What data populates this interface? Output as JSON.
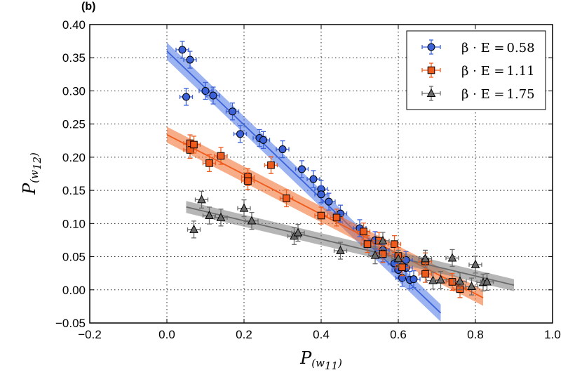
{
  "chart_data": {
    "type": "scatter",
    "panel_label": "(b)",
    "xlabel": {
      "main": "P",
      "sub": "(w",
      "sub_index": "11",
      "close": ")"
    },
    "ylabel": {
      "main": "P",
      "sub": "(w",
      "sub_index": "12",
      "close": ")"
    },
    "xlim": [
      -0.2,
      1.0
    ],
    "ylim": [
      -0.05,
      0.4
    ],
    "xticks": [
      "−0.2",
      "0.0",
      "0.2",
      "0.4",
      "0.6",
      "0.8",
      "1.0"
    ],
    "xtick_values": [
      -0.2,
      0.0,
      0.2,
      0.4,
      0.6,
      0.8,
      1.0
    ],
    "yticks": [
      "−0.05",
      "0.00",
      "0.05",
      "0.10",
      "0.15",
      "0.20",
      "0.25",
      "0.30",
      "0.35",
      "0.40"
    ],
    "ytick_values": [
      -0.05,
      0.0,
      0.05,
      0.1,
      0.15,
      0.2,
      0.25,
      0.3,
      0.35,
      0.4
    ],
    "grid": true,
    "legend_position": "top-right",
    "series": [
      {
        "name": "β · E = 0.58",
        "legend_prefix": "β · E =",
        "legend_value": "0.58",
        "marker": "circle",
        "color": "#3b62d9",
        "band_color": "#4a74e6",
        "fit": {
          "x_start": 0.0,
          "x_end": 0.71,
          "y_start": 0.36,
          "y_end": -0.035,
          "band_halfwidth": 0.013
        },
        "points": [
          [
            0.04,
            0.362
          ],
          [
            0.06,
            0.347
          ],
          [
            0.05,
            0.291
          ],
          [
            0.1,
            0.3
          ],
          [
            0.12,
            0.293
          ],
          [
            0.17,
            0.269
          ],
          [
            0.19,
            0.235
          ],
          [
            0.24,
            0.229
          ],
          [
            0.25,
            0.226
          ],
          [
            0.3,
            0.212
          ],
          [
            0.35,
            0.182
          ],
          [
            0.38,
            0.167
          ],
          [
            0.4,
            0.152
          ],
          [
            0.4,
            0.144
          ],
          [
            0.42,
            0.133
          ],
          [
            0.45,
            0.115
          ],
          [
            0.5,
            0.093
          ],
          [
            0.54,
            0.075
          ],
          [
            0.56,
            0.06
          ],
          [
            0.56,
            0.055
          ],
          [
            0.59,
            0.04
          ],
          [
            0.6,
            0.03
          ],
          [
            0.61,
            0.018
          ],
          [
            0.62,
            0.045
          ],
          [
            0.62,
            0.033
          ],
          [
            0.63,
            0.015
          ],
          [
            0.64,
            0.016
          ]
        ]
      },
      {
        "name": "β · E = 1.11",
        "legend_prefix": "β · E =",
        "legend_value": "1.11",
        "marker": "square",
        "color": "#f05a1a",
        "band_color": "#f36a28",
        "fit": {
          "x_start": 0.0,
          "x_end": 0.82,
          "y_start": 0.234,
          "y_end": -0.012,
          "band_halfwidth": 0.012
        },
        "points": [
          [
            0.06,
            0.221
          ],
          [
            0.06,
            0.211
          ],
          [
            0.07,
            0.219
          ],
          [
            0.11,
            0.191
          ],
          [
            0.14,
            0.202
          ],
          [
            0.21,
            0.17
          ],
          [
            0.21,
            0.164
          ],
          [
            0.27,
            0.188
          ],
          [
            0.31,
            0.138
          ],
          [
            0.4,
            0.112
          ],
          [
            0.44,
            0.109
          ],
          [
            0.51,
            0.088
          ],
          [
            0.52,
            0.069
          ],
          [
            0.55,
            0.074
          ],
          [
            0.56,
            0.054
          ],
          [
            0.59,
            0.069
          ],
          [
            0.6,
            0.051
          ],
          [
            0.61,
            0.034
          ],
          [
            0.67,
            0.043
          ],
          [
            0.67,
            0.024
          ],
          [
            0.74,
            0.012
          ],
          [
            0.76,
            0.001
          ]
        ]
      },
      {
        "name": "β · E = 1.75",
        "legend_prefix": "β · E =",
        "legend_value": "1.75",
        "marker": "triangle",
        "color": "#6b6b6b",
        "band_color": "#7a7a7a",
        "fit": {
          "x_start": 0.05,
          "x_end": 0.9,
          "y_start": 0.125,
          "y_end": 0.007,
          "band_halfwidth": 0.009
        },
        "points": [
          [
            0.07,
            0.091
          ],
          [
            0.09,
            0.136
          ],
          [
            0.11,
            0.112
          ],
          [
            0.14,
            0.109
          ],
          [
            0.2,
            0.123
          ],
          [
            0.22,
            0.104
          ],
          [
            0.33,
            0.081
          ],
          [
            0.34,
            0.086
          ],
          [
            0.45,
            0.059
          ],
          [
            0.54,
            0.052
          ],
          [
            0.56,
            0.074
          ],
          [
            0.6,
            0.047
          ],
          [
            0.67,
            0.047
          ],
          [
            0.69,
            0.014
          ],
          [
            0.71,
            0.015
          ],
          [
            0.74,
            0.048
          ],
          [
            0.76,
            0.013
          ],
          [
            0.79,
            0.005
          ],
          [
            0.8,
            0.038
          ],
          [
            0.82,
            0.011
          ],
          [
            0.83,
            0.012
          ]
        ]
      }
    ]
  }
}
